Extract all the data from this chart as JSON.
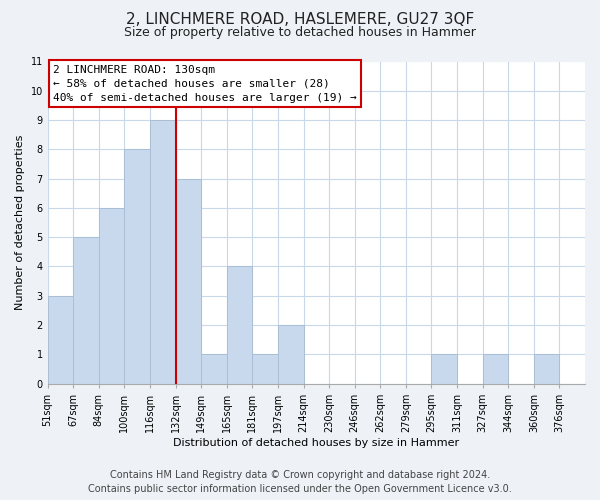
{
  "title": "2, LINCHMERE ROAD, HASLEMERE, GU27 3QF",
  "subtitle": "Size of property relative to detached houses in Hammer",
  "xlabel": "Distribution of detached houses by size in Hammer",
  "ylabel": "Number of detached properties",
  "bin_labels": [
    "51sqm",
    "67sqm",
    "84sqm",
    "100sqm",
    "116sqm",
    "132sqm",
    "149sqm",
    "165sqm",
    "181sqm",
    "197sqm",
    "214sqm",
    "230sqm",
    "246sqm",
    "262sqm",
    "279sqm",
    "295sqm",
    "311sqm",
    "327sqm",
    "344sqm",
    "360sqm",
    "376sqm"
  ],
  "bar_heights": [
    3,
    5,
    6,
    8,
    9,
    7,
    1,
    4,
    1,
    2,
    0,
    0,
    0,
    0,
    0,
    1,
    0,
    1,
    0,
    1,
    0
  ],
  "bar_color": "#c9d9ed",
  "bar_edgecolor": "#aabfd6",
  "grid_color": "#c8d8e8",
  "vline_x_index": 5,
  "vline_color": "#cc0000",
  "annotation_title": "2 LINCHMERE ROAD: 130sqm",
  "annotation_line1": "← 58% of detached houses are smaller (28)",
  "annotation_line2": "40% of semi-detached houses are larger (19) →",
  "annotation_box_edgecolor": "#cc0000",
  "ylim": [
    0,
    11
  ],
  "yticks": [
    0,
    1,
    2,
    3,
    4,
    5,
    6,
    7,
    8,
    9,
    10,
    11
  ],
  "footer_line1": "Contains HM Land Registry data © Crown copyright and database right 2024.",
  "footer_line2": "Contains public sector information licensed under the Open Government Licence v3.0.",
  "background_color": "#eef2f7",
  "plot_background_color": "#ffffff",
  "title_fontsize": 11,
  "subtitle_fontsize": 9,
  "axis_label_fontsize": 8,
  "tick_fontsize": 7,
  "annotation_fontsize": 8,
  "footer_fontsize": 7
}
